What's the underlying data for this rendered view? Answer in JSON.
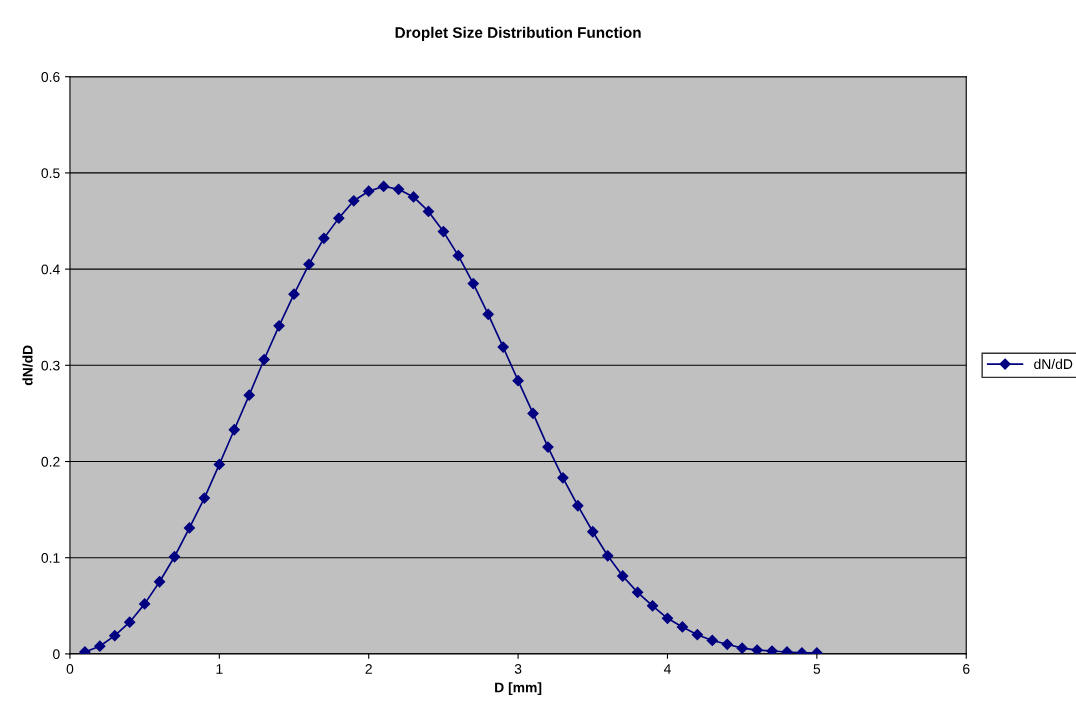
{
  "chart_data": {
    "type": "line",
    "title": "Droplet Size Distribution Function",
    "xlabel": "D [mm]",
    "ylabel": "dN/dD",
    "x": [
      0.1,
      0.2,
      0.3,
      0.4,
      0.5,
      0.6,
      0.7,
      0.8,
      0.9,
      1.0,
      1.1,
      1.2,
      1.3,
      1.4,
      1.5,
      1.6,
      1.7,
      1.8,
      1.9,
      2.0,
      2.1,
      2.2,
      2.3,
      2.4,
      2.5,
      2.6,
      2.7,
      2.8,
      2.9,
      3.0,
      3.1,
      3.2,
      3.3,
      3.4,
      3.5,
      3.6,
      3.7,
      3.8,
      3.9,
      4.0,
      4.1,
      4.2,
      4.3,
      4.4,
      4.5,
      4.6,
      4.7,
      4.8,
      4.9,
      5.0
    ],
    "series": [
      {
        "name": "dN/dD",
        "color": "#000080",
        "values": [
          0.002,
          0.008,
          0.019,
          0.033,
          0.052,
          0.075,
          0.101,
          0.131,
          0.162,
          0.197,
          0.233,
          0.269,
          0.306,
          0.341,
          0.374,
          0.405,
          0.432,
          0.453,
          0.471,
          0.481,
          0.486,
          0.483,
          0.475,
          0.46,
          0.439,
          0.414,
          0.385,
          0.353,
          0.319,
          0.284,
          0.25,
          0.215,
          0.183,
          0.154,
          0.127,
          0.102,
          0.081,
          0.064,
          0.05,
          0.037,
          0.028,
          0.02,
          0.014,
          0.01,
          0.006,
          0.004,
          0.003,
          0.002,
          0.001,
          0.001
        ]
      }
    ],
    "xlim": [
      0,
      6
    ],
    "xticks": [
      0,
      1,
      2,
      3,
      4,
      5,
      6
    ],
    "ylim": [
      0,
      0.6
    ],
    "yticks": [
      0,
      0.1,
      0.2,
      0.3,
      0.4,
      0.5,
      0.6
    ],
    "grid": "y",
    "legend": "right",
    "marker": "diamond",
    "line_style": "solid"
  }
}
